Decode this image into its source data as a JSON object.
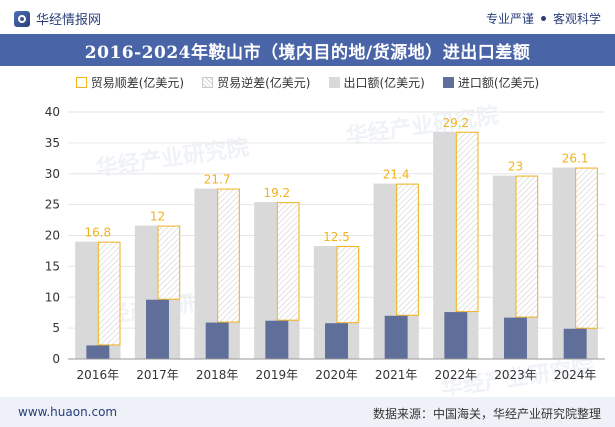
{
  "header": {
    "brand": "华经情报网",
    "tagline_left": "专业严谨",
    "tagline_right": "客观科学"
  },
  "title": "2016-2024年鞍山市（境内目的地/货源地）进出口差额",
  "legend": [
    {
      "key": "surplus",
      "label": "贸易顺差(亿美元)"
    },
    {
      "key": "deficit",
      "label": "贸易逆差(亿美元)"
    },
    {
      "key": "export",
      "label": "出口额(亿美元)"
    },
    {
      "key": "import",
      "label": "进口额(亿美元)"
    }
  ],
  "watermark_text": "华经产业研究院",
  "footer": {
    "site": "www.huaon.com",
    "source": "数据来源：中国海关，华经产业研究院整理"
  },
  "colors": {
    "export": "#d9d9d9",
    "import": "#5f6f9a",
    "surplus_border": "#f2b21b",
    "label": "#f2b21b",
    "title_bg": "#4a64a8"
  },
  "chart_data": {
    "type": "bar",
    "categories": [
      "2016年",
      "2017年",
      "2018年",
      "2019年",
      "2020年",
      "2021年",
      "2022年",
      "2023年",
      "2024年"
    ],
    "series": [
      {
        "name": "出口额(亿美元)",
        "values": [
          19.0,
          21.6,
          27.6,
          25.4,
          18.3,
          28.4,
          36.8,
          29.7,
          31.0
        ]
      },
      {
        "name": "进口额(亿美元)",
        "values": [
          2.2,
          9.6,
          5.9,
          6.2,
          5.8,
          7.0,
          7.6,
          6.7,
          4.9
        ]
      },
      {
        "name": "贸易顺差(亿美元)",
        "values": [
          16.8,
          12,
          21.7,
          19.2,
          12.5,
          21.4,
          29.2,
          23,
          26.1
        ]
      }
    ],
    "data_labels": [
      "16.8",
      "12",
      "21.7",
      "19.2",
      "12.5",
      "21.4",
      "29.2",
      "23",
      "26.1"
    ],
    "y_ticks": [
      "0",
      "5",
      "10",
      "15",
      "20",
      "25",
      "30",
      "35",
      "40"
    ],
    "ylim": [
      0,
      40
    ],
    "grid": true,
    "legend_position": "top"
  }
}
